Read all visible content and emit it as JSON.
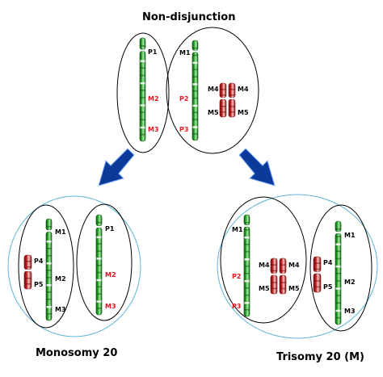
{
  "title": "Non-disjunction",
  "captions": {
    "left": "Monosomy 20",
    "right": "Trisomy 20 (M)"
  },
  "colors": {
    "green": "#1e8c1e",
    "green_light": "#8fe08f",
    "red": "#b01b1b",
    "red_light": "#f4c0c0",
    "arrow": "#0a3a9a",
    "arrow_edge": "#8fb7ff",
    "label_red": "#e8141e",
    "outline": "#000000",
    "circle": "#5fb6d8"
  },
  "chromosomes": [
    {
      "id": "top-P1-long",
      "label": "P1",
      "label_color": "black"
    },
    {
      "id": "top-M2",
      "label": "M2",
      "label_color": "red"
    },
    {
      "id": "top-M3",
      "label": "M3",
      "label_color": "red"
    },
    {
      "id": "top-M1",
      "label": "M1",
      "label_color": "black"
    },
    {
      "id": "top-P2",
      "label": "P2",
      "label_color": "red"
    },
    {
      "id": "top-P3",
      "label": "P3",
      "label_color": "red"
    },
    {
      "id": "top-M4a",
      "label": "M4",
      "label_color": "black"
    },
    {
      "id": "top-M4b",
      "label": "M4",
      "label_color": "black"
    },
    {
      "id": "top-M5a",
      "label": "M5",
      "label_color": "black"
    },
    {
      "id": "top-M5b",
      "label": "M5",
      "label_color": "black"
    },
    {
      "id": "left-M1",
      "label": "M1",
      "label_color": "black"
    },
    {
      "id": "left-M2",
      "label": "M2",
      "label_color": "black"
    },
    {
      "id": "left-M3",
      "label": "M3",
      "label_color": "black"
    },
    {
      "id": "left-P4",
      "label": "P4",
      "label_color": "black"
    },
    {
      "id": "left-P5",
      "label": "P5",
      "label_color": "black"
    },
    {
      "id": "left-P1",
      "label": "P1",
      "label_color": "black"
    },
    {
      "id": "left-M2r",
      "label": "M2",
      "label_color": "red"
    },
    {
      "id": "left-M3r",
      "label": "M3",
      "label_color": "red"
    },
    {
      "id": "right-M1",
      "label": "M1",
      "label_color": "black"
    },
    {
      "id": "right-P2",
      "label": "P2",
      "label_color": "red"
    },
    {
      "id": "right-P3",
      "label": "P3",
      "label_color": "red"
    },
    {
      "id": "right-M4a",
      "label": "M4",
      "label_color": "black"
    },
    {
      "id": "right-M4b",
      "label": "M4",
      "label_color": "black"
    },
    {
      "id": "right-M5a",
      "label": "M5",
      "label_color": "black"
    },
    {
      "id": "right-M5b",
      "label": "M5",
      "label_color": "black"
    },
    {
      "id": "right-P4",
      "label": "P4",
      "label_color": "black"
    },
    {
      "id": "right-P5",
      "label": "P5",
      "label_color": "black"
    },
    {
      "id": "right-M1b",
      "label": "M1",
      "label_color": "black"
    },
    {
      "id": "right-M2b",
      "label": "M2",
      "label_color": "black"
    },
    {
      "id": "right-M3b",
      "label": "M3",
      "label_color": "black"
    }
  ]
}
